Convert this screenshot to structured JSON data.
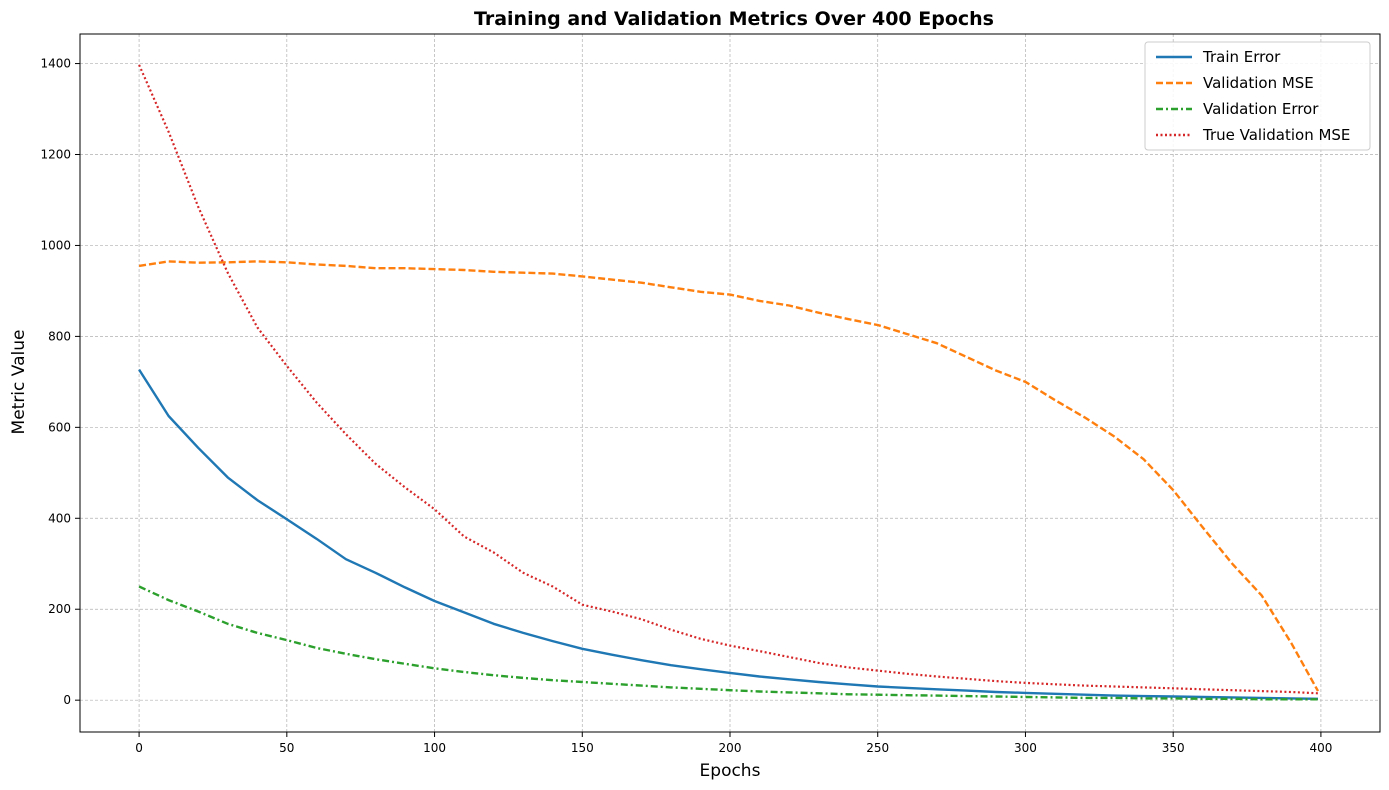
{
  "chart_data": {
    "type": "line",
    "title": "Training and Validation Metrics Over 400 Epochs",
    "xlabel": "Epochs",
    "ylabel": "Metric Value",
    "xlim": [
      -20,
      420
    ],
    "ylim": [
      -70,
      1465
    ],
    "xticks": [
      0,
      50,
      100,
      150,
      200,
      250,
      300,
      350,
      400
    ],
    "xtick_labels": [
      "0",
      "50",
      "100",
      "150",
      "200",
      "250",
      "300",
      "350",
      "400"
    ],
    "yticks": [
      0,
      200,
      400,
      600,
      800,
      1000,
      1200,
      1400
    ],
    "ytick_labels": [
      "0",
      "200",
      "400",
      "600",
      "800",
      "1000",
      "1200",
      "1400"
    ],
    "grid": true,
    "legend_position": "top-right",
    "x": [
      0,
      10,
      20,
      30,
      40,
      50,
      60,
      70,
      80,
      90,
      100,
      110,
      120,
      130,
      140,
      150,
      160,
      170,
      180,
      190,
      200,
      210,
      220,
      230,
      240,
      250,
      260,
      270,
      280,
      290,
      300,
      310,
      320,
      330,
      340,
      350,
      360,
      370,
      380,
      390,
      399
    ],
    "series": [
      {
        "name": "Train Error",
        "color": "#1f77b4",
        "style": "solid",
        "values": [
          727,
          625,
          555,
          490,
          440,
          398,
          355,
          310,
          280,
          248,
          218,
          193,
          168,
          148,
          130,
          113,
          100,
          88,
          77,
          68,
          60,
          52,
          46,
          40,
          35,
          30,
          27,
          24,
          21,
          18,
          16,
          14,
          12,
          10,
          9,
          8,
          7,
          6,
          5,
          4,
          3
        ]
      },
      {
        "name": "Validation MSE",
        "color": "#ff7f0e",
        "style": "dashed",
        "values": [
          955,
          965,
          962,
          963,
          965,
          963,
          958,
          955,
          950,
          950,
          948,
          946,
          942,
          940,
          938,
          932,
          925,
          918,
          908,
          898,
          892,
          878,
          868,
          852,
          838,
          825,
          805,
          785,
          755,
          725,
          700,
          660,
          622,
          580,
          530,
          462,
          380,
          300,
          230,
          125,
          20
        ]
      },
      {
        "name": "Validation Error",
        "color": "#2ca02c",
        "style": "dashdot",
        "values": [
          250,
          220,
          195,
          168,
          148,
          132,
          115,
          102,
          90,
          80,
          70,
          62,
          55,
          49,
          44,
          40,
          36,
          32,
          28,
          25,
          22,
          19,
          17,
          15,
          13,
          12,
          11,
          10,
          9,
          8,
          7,
          6,
          5,
          5,
          4,
          4,
          3,
          3,
          2,
          2,
          2
        ]
      },
      {
        "name": "True Validation MSE",
        "color": "#d62728",
        "style": "dotted",
        "values": [
          1397,
          1250,
          1085,
          940,
          820,
          735,
          655,
          585,
          520,
          468,
          420,
          360,
          325,
          280,
          250,
          210,
          195,
          178,
          155,
          135,
          120,
          108,
          95,
          82,
          72,
          65,
          58,
          52,
          47,
          42,
          38,
          35,
          32,
          30,
          28,
          26,
          24,
          22,
          20,
          18,
          15
        ]
      }
    ]
  }
}
